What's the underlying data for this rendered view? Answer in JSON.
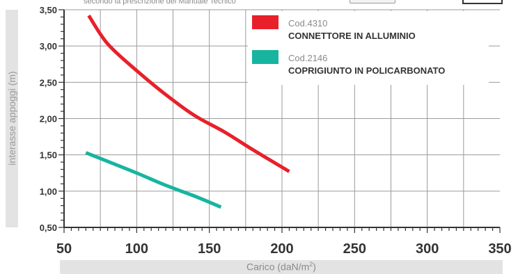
{
  "header": {
    "subtitle": "secondo la prescrizione del Manuale Tecnico"
  },
  "chart_data": {
    "type": "line",
    "xlabel": "Carico (daN/m",
    "xlabel_sup": "2",
    "xlabel_suffix": ")",
    "ylabel": "interasse appoggi (m)",
    "xlim": [
      50,
      350
    ],
    "ylim": [
      0.5,
      3.5
    ],
    "x_ticks": [
      "50",
      "100",
      "150",
      "200",
      "250",
      "300",
      "350"
    ],
    "y_ticks": [
      "0,50",
      "1,00",
      "1,50",
      "2,00",
      "2,50",
      "3,00",
      "3,50"
    ],
    "grid": true,
    "legend_position": "top-right",
    "series": [
      {
        "code": "Cod.4310",
        "name": "CONNETTORE IN ALLUMINIO",
        "color": "#e8202a",
        "x": [
          67,
          80,
          100,
          120,
          140,
          160,
          180,
          205
        ],
        "y": [
          3.42,
          3.03,
          2.66,
          2.33,
          2.04,
          1.82,
          1.57,
          1.27
        ]
      },
      {
        "code": "Cod.2146",
        "name": "COPRIGIUNTO IN POLICARBONATO",
        "color": "#17b59f",
        "x": [
          65,
          80,
          100,
          120,
          140,
          158
        ],
        "y": [
          1.53,
          1.41,
          1.25,
          1.08,
          0.93,
          0.78
        ]
      }
    ]
  }
}
